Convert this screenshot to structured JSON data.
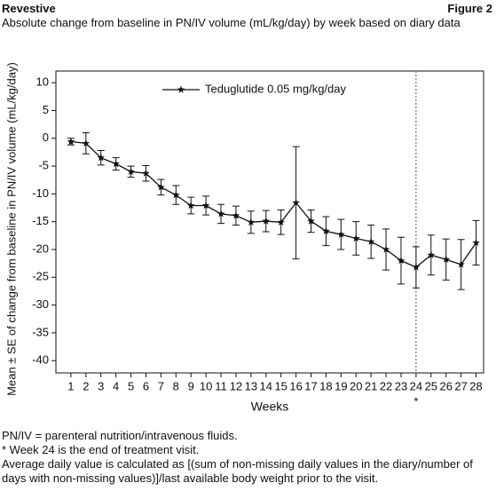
{
  "chart_data": {
    "type": "errorline",
    "brand": "Revestive",
    "figure_label": "Figure 2",
    "title": "Absolute change from baseline in PN/IV volume (mL/kg/day) by week based on diary data",
    "y_label": "Mean ± SE of change from baseline in PN/IV volume (mL/kg/day)",
    "x_label": "Weeks",
    "x": [
      1,
      2,
      3,
      4,
      5,
      6,
      7,
      8,
      9,
      10,
      11,
      12,
      13,
      14,
      15,
      16,
      17,
      18,
      19,
      20,
      21,
      22,
      23,
      24,
      25,
      26,
      27,
      28
    ],
    "series": [
      {
        "name": "Teduglutide 0.05 mg/kg/day",
        "color": "#111111",
        "values": [
          -0.6,
          -0.9,
          -3.5,
          -4.6,
          -6.0,
          -6.3,
          -8.8,
          -10.2,
          -12.1,
          -12.1,
          -13.6,
          -13.9,
          -15.1,
          -14.9,
          -15.1,
          -11.6,
          -14.9,
          -16.7,
          -17.3,
          -18.0,
          -18.6,
          -20.0,
          -22.0,
          -23.2,
          -21.0,
          -21.8,
          -22.7,
          -18.8
        ],
        "errors": [
          0.6,
          1.9,
          1.3,
          1.1,
          1.0,
          1.4,
          1.4,
          1.7,
          1.5,
          1.7,
          1.7,
          1.7,
          2.0,
          1.9,
          2.2,
          10.1,
          2.0,
          2.6,
          2.7,
          3.0,
          3.0,
          3.7,
          4.2,
          3.7,
          3.6,
          3.7,
          4.5,
          4.0
        ]
      }
    ],
    "xlim": [
      0,
      28.5
    ],
    "xticks": [
      1,
      2,
      3,
      4,
      5,
      6,
      7,
      8,
      9,
      10,
      11,
      12,
      13,
      14,
      15,
      16,
      17,
      18,
      19,
      20,
      21,
      22,
      23,
      24,
      25,
      26,
      27,
      28
    ],
    "ylim": [
      -42.2,
      12.1
    ],
    "yticks": [
      10,
      5,
      0,
      -5,
      -10,
      -15,
      -20,
      -25,
      -30,
      -35,
      -40
    ],
    "vline": 24,
    "vline_note": "*",
    "notes": [
      "PN/IV = parenteral nutrition/intravenous fluids.",
      "* Week 24 is the end of treatment visit.",
      "Average daily value is calculated as [(sum of non-missing daily values in the diary/number of days with non-missing values)]/last available body weight prior to the visit."
    ]
  }
}
